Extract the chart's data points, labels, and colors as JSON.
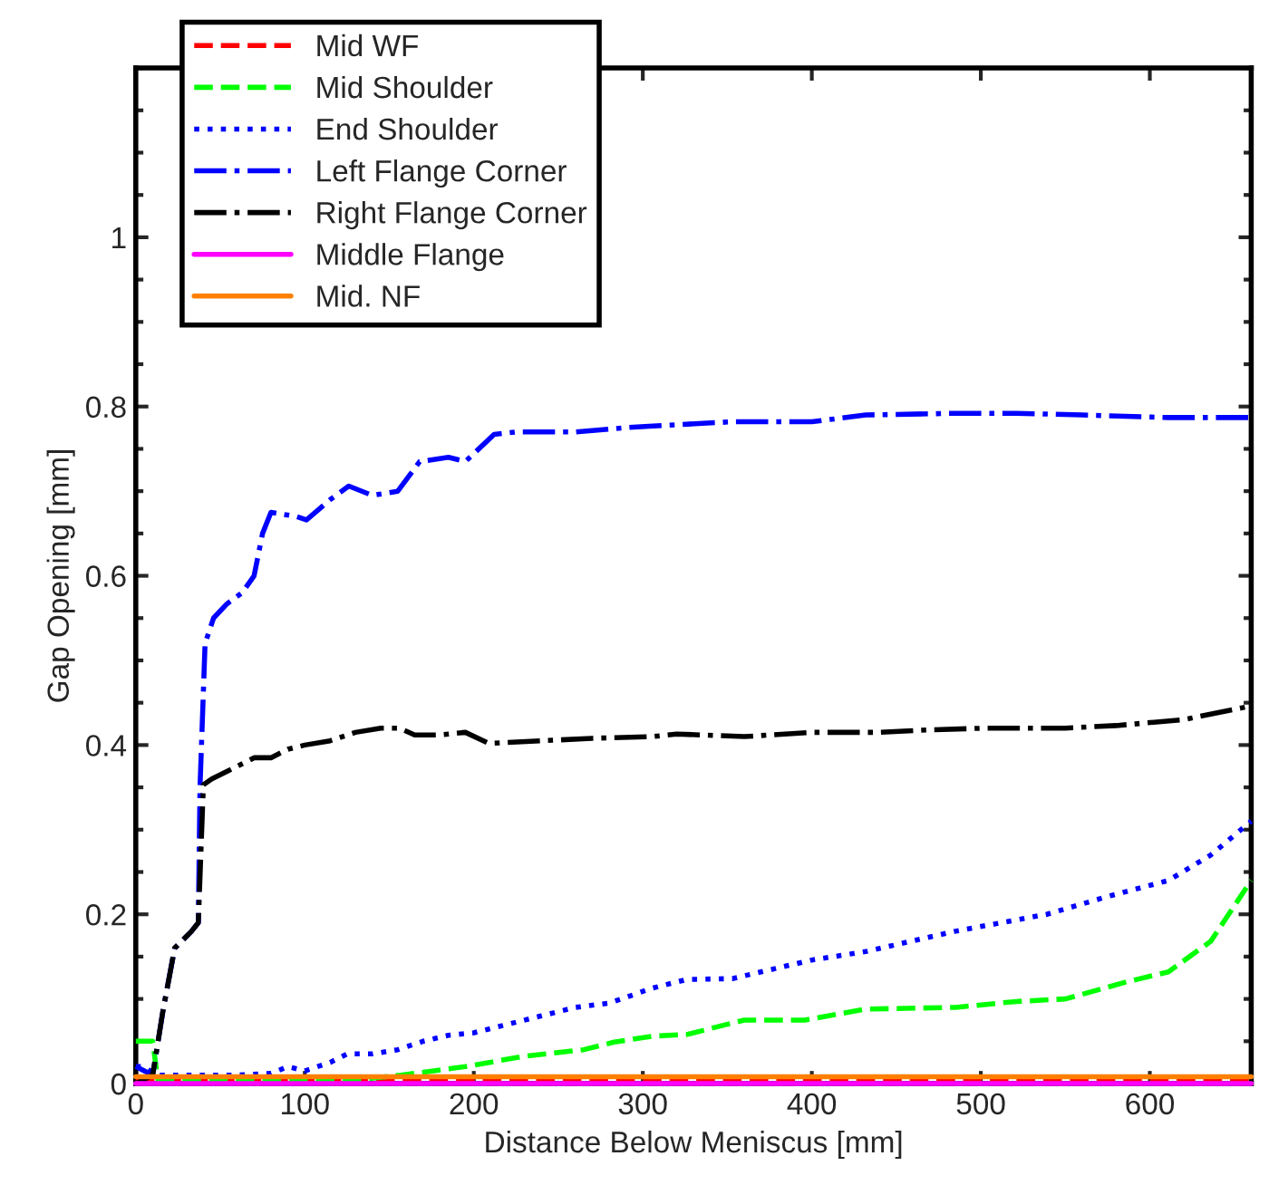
{
  "chart_data": {
    "type": "line",
    "xlabel": "Distance Below Meniscus [mm]",
    "ylabel": "Gap Opening [mm]",
    "xlim": [
      0,
      660
    ],
    "xticks": [
      0,
      100,
      200,
      300,
      400,
      500,
      600
    ],
    "ylim": [
      0,
      1.2
    ],
    "yticks": [
      0,
      0.2,
      0.4,
      0.6,
      0.8,
      1
    ],
    "grid": false,
    "legend": "top left",
    "marker": "none",
    "series": [
      {
        "name": "Mid WF",
        "color": "#ff0000",
        "line_style": "dashed",
        "x": [
          0,
          660
        ],
        "values": [
          0.004,
          0.004
        ]
      },
      {
        "name": "Mid Shoulder",
        "color": "#00ff00",
        "line_style": "dashed",
        "x": [
          0,
          5,
          10,
          13,
          20,
          60,
          100,
          134,
          157,
          195,
          229,
          265,
          283,
          306,
          326,
          360,
          396,
          432,
          485,
          521,
          550,
          586,
          611,
          636,
          660
        ],
        "values": [
          0.05,
          0.05,
          0.05,
          0.005,
          0.003,
          0.003,
          0.003,
          0.005,
          0.01,
          0.02,
          0.032,
          0.04,
          0.049,
          0.056,
          0.058,
          0.075,
          0.075,
          0.088,
          0.09,
          0.097,
          0.1,
          0.12,
          0.132,
          0.168,
          0.24
        ]
      },
      {
        "name": "End Shoulder",
        "color": "#0000ff",
        "line_style": "dotted",
        "x": [
          0,
          5,
          12,
          20,
          40,
          60,
          80,
          90,
          100,
          115,
          125,
          140,
          155,
          170,
          185,
          200,
          220,
          240,
          260,
          280,
          306,
          326,
          353,
          400,
          432,
          485,
          539,
          575,
          611,
          636,
          660
        ],
        "values": [
          0.02,
          0.02,
          0.01,
          0.01,
          0.01,
          0.01,
          0.012,
          0.02,
          0.015,
          0.025,
          0.035,
          0.035,
          0.04,
          0.05,
          0.057,
          0.06,
          0.07,
          0.08,
          0.09,
          0.095,
          0.113,
          0.123,
          0.124,
          0.146,
          0.156,
          0.18,
          0.2,
          0.221,
          0.24,
          0.27,
          0.31
        ]
      },
      {
        "name": "Left Flange Corner",
        "color": "#0000ff",
        "line_style": "dashdot",
        "x": [
          0,
          10,
          16,
          23,
          33,
          37,
          38,
          41,
          46,
          54,
          63,
          70,
          75,
          80,
          95,
          101,
          115,
          126,
          140,
          155,
          168,
          185,
          195,
          212,
          225,
          260,
          290,
          306,
          353,
          400,
          432,
          485,
          521,
          560,
          611,
          660
        ],
        "values": [
          0.02,
          0.01,
          0.085,
          0.16,
          0.18,
          0.19,
          0.35,
          0.52,
          0.55,
          0.567,
          0.58,
          0.6,
          0.65,
          0.675,
          0.67,
          0.666,
          0.69,
          0.706,
          0.695,
          0.7,
          0.735,
          0.74,
          0.735,
          0.767,
          0.77,
          0.77,
          0.775,
          0.777,
          0.782,
          0.782,
          0.79,
          0.792,
          0.792,
          0.79,
          0.787,
          0.787
        ]
      },
      {
        "name": "Right Flange Corner",
        "color": "#000000",
        "line_style": "dashdot",
        "x": [
          0,
          10,
          16,
          23,
          33,
          37,
          40,
          45,
          55,
          70,
          80,
          90,
          100,
          115,
          130,
          145,
          156,
          165,
          180,
          195,
          209,
          240,
          270,
          306,
          320,
          360,
          400,
          440,
          470,
          503,
          550,
          580,
          620,
          657
        ],
        "values": [
          0,
          0.01,
          0.085,
          0.16,
          0.18,
          0.19,
          0.353,
          0.36,
          0.37,
          0.385,
          0.385,
          0.395,
          0.4,
          0.405,
          0.415,
          0.42,
          0.42,
          0.412,
          0.412,
          0.415,
          0.402,
          0.405,
          0.408,
          0.41,
          0.413,
          0.41,
          0.415,
          0.415,
          0.418,
          0.42,
          0.42,
          0.423,
          0.43,
          0.445
        ]
      },
      {
        "name": "Middle Flange",
        "color": "#ff00ff",
        "line_style": "solid",
        "x": [
          0,
          660
        ],
        "values": [
          0,
          0
        ]
      },
      {
        "name": "Mid. NF",
        "color": "#ff8000",
        "line_style": "solid",
        "x": [
          0,
          660
        ],
        "values": [
          0.008,
          0.008
        ]
      }
    ]
  }
}
